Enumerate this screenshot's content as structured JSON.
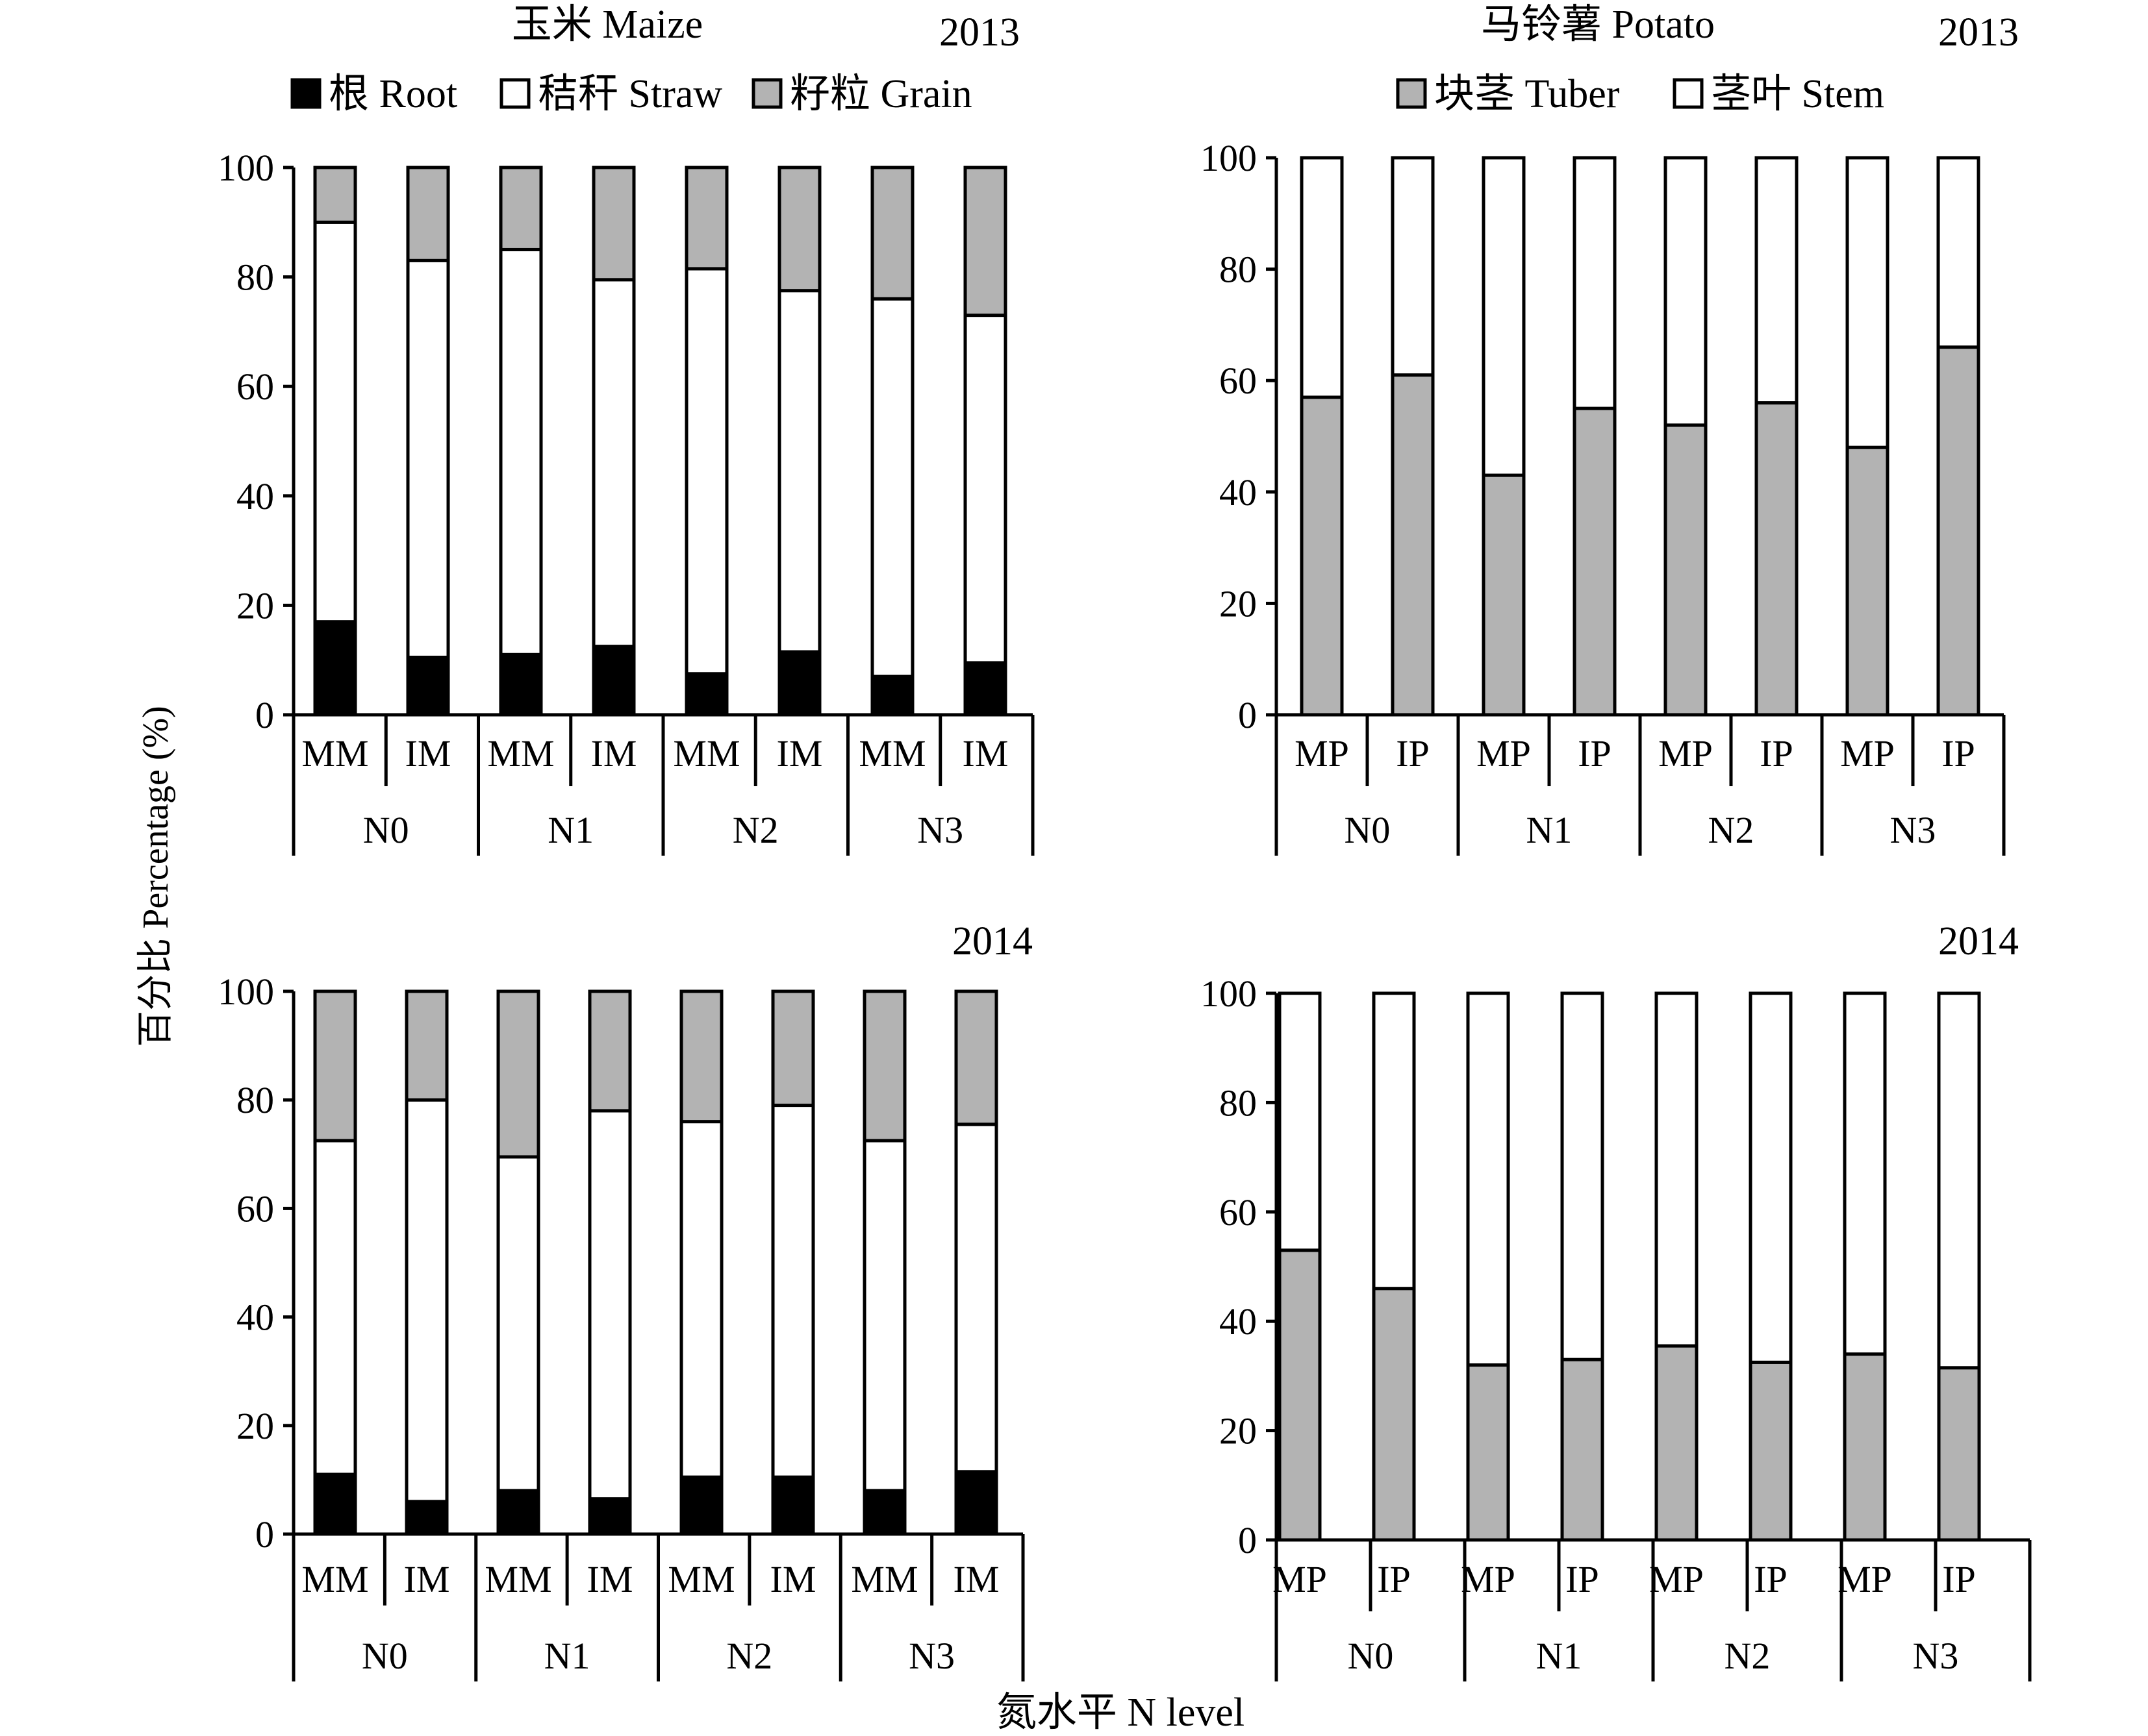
{
  "figure": {
    "ylabel": "百分比 Percentage (%)",
    "xlabel": "氮水平 N level",
    "legends": {
      "maize": [
        {
          "name": "根 Root",
          "color": "#000000"
        },
        {
          "name": "秸秆 Straw",
          "color": "#ffffff"
        },
        {
          "name": "籽粒 Grain",
          "color": "#b3b3b3"
        }
      ],
      "potato": [
        {
          "name": "块茎 Tuber",
          "color": "#b3b3b3"
        },
        {
          "name": "茎叶 Stem",
          "color": "#ffffff"
        }
      ]
    }
  },
  "chart_data": [
    {
      "type": "bar",
      "stacked": true,
      "title": "玉米 Maize",
      "year": "2013",
      "groups": [
        "N0",
        "N1",
        "N2",
        "N3"
      ],
      "categories": [
        "MM",
        "IM",
        "MM",
        "IM",
        "MM",
        "IM",
        "MM",
        "IM"
      ],
      "ylim": [
        0,
        100
      ],
      "yticks": [
        0,
        20,
        40,
        60,
        80,
        100
      ],
      "series": [
        {
          "name": "根 Root",
          "color": "#000000",
          "values": [
            17,
            10.5,
            11,
            12.5,
            7.5,
            11.5,
            7,
            9.5
          ]
        },
        {
          "name": "秸秆 Straw",
          "color": "#ffffff",
          "values": [
            73,
            72.5,
            74,
            67,
            74,
            66,
            69,
            63.5
          ]
        },
        {
          "name": "籽粒 Grain",
          "color": "#b3b3b3",
          "values": [
            10,
            17,
            15,
            20.5,
            18.5,
            22.5,
            24,
            27
          ]
        }
      ]
    },
    {
      "type": "bar",
      "stacked": true,
      "title": "马铃薯 Potato",
      "year": "2013",
      "groups": [
        "N0",
        "N1",
        "N2",
        "N3"
      ],
      "categories": [
        "MP",
        "IP",
        "MP",
        "IP",
        "MP",
        "IP",
        "MP",
        "IP"
      ],
      "ylim": [
        0,
        100
      ],
      "yticks": [
        0,
        20,
        40,
        60,
        80,
        100
      ],
      "series": [
        {
          "name": "块茎 Tuber",
          "color": "#b3b3b3",
          "values": [
            57,
            61,
            43,
            55,
            52,
            56,
            48,
            66
          ]
        },
        {
          "name": "茎叶 Stem",
          "color": "#ffffff",
          "values": [
            43,
            39,
            57,
            45,
            48,
            44,
            52,
            34
          ]
        }
      ]
    },
    {
      "type": "bar",
      "stacked": true,
      "year": "2014",
      "groups": [
        "N0",
        "N1",
        "N2",
        "N3"
      ],
      "categories": [
        "MM",
        "IM",
        "MM",
        "IM",
        "MM",
        "IM",
        "MM",
        "IM"
      ],
      "ylim": [
        0,
        100
      ],
      "yticks": [
        0,
        20,
        40,
        60,
        80,
        100
      ],
      "series": [
        {
          "name": "根 Root",
          "color": "#000000",
          "values": [
            11,
            6,
            8,
            6.5,
            10.5,
            10.5,
            8,
            11.5
          ]
        },
        {
          "name": "秸秆 Straw",
          "color": "#ffffff",
          "values": [
            61.5,
            74,
            61.5,
            71.5,
            65.5,
            68.5,
            64.5,
            64
          ]
        },
        {
          "name": "籽粒 Grain",
          "color": "#b3b3b3",
          "values": [
            27.5,
            20,
            30.5,
            22,
            24,
            21,
            27.5,
            24.5
          ]
        }
      ]
    },
    {
      "type": "bar",
      "stacked": true,
      "year": "2014",
      "groups": [
        "N0",
        "N1",
        "N2",
        "N3"
      ],
      "categories": [
        "MP",
        "IP",
        "MP",
        "IP",
        "MP",
        "IP",
        "MP",
        "IP"
      ],
      "ylim": [
        0,
        100
      ],
      "yticks": [
        0,
        20,
        40,
        60,
        80,
        100
      ],
      "series": [
        {
          "name": "块茎 Tuber",
          "color": "#b3b3b3",
          "values": [
            53,
            46,
            32,
            33,
            35.5,
            32.5,
            34,
            31.5
          ]
        },
        {
          "name": "茎叶 Stem",
          "color": "#ffffff",
          "values": [
            47,
            54,
            68,
            67,
            64.5,
            67.5,
            66,
            68.5
          ]
        }
      ]
    }
  ]
}
